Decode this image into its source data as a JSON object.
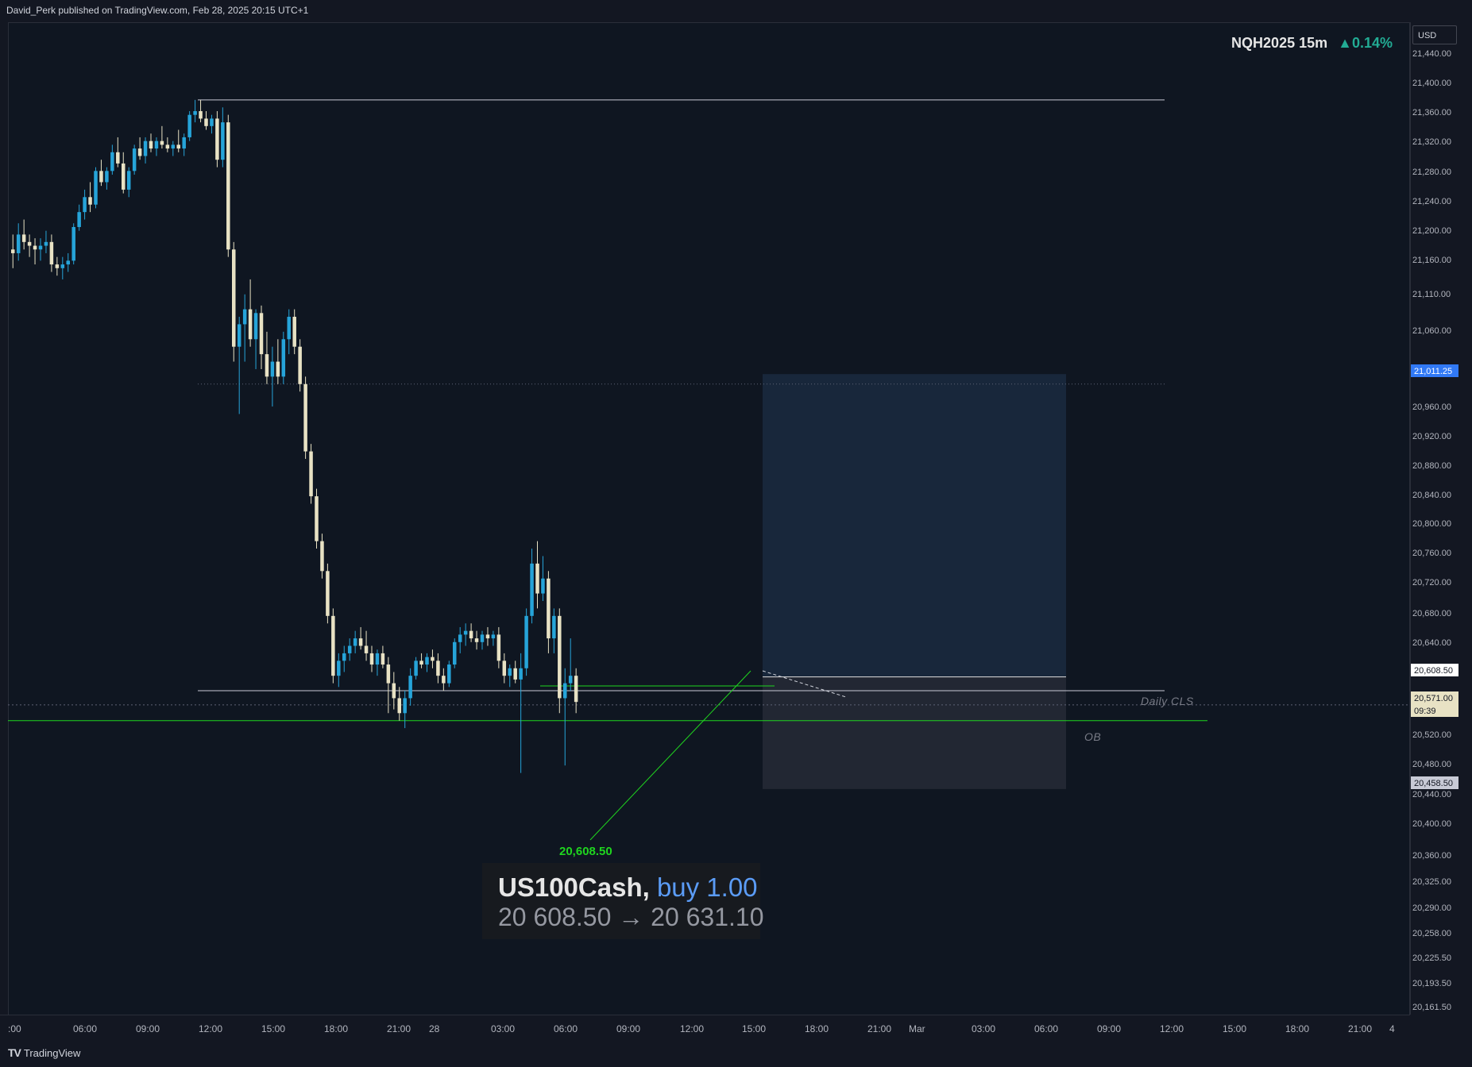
{
  "header": {
    "published": "David_Perk published on TradingView.com, Feb 28, 2025 20:15 UTC+1"
  },
  "legend": {
    "symbol": "NQH2025 15m",
    "change": "▲0.14%"
  },
  "price_axis": {
    "currency": "USD",
    "ticks": [
      "21,440.00",
      "21,400.00",
      "21,360.00",
      "21,320.00",
      "21,280.00",
      "21,240.00",
      "21,200.00",
      "21,160.00",
      "21,110.00",
      "21,060.00",
      "20,960.00",
      "20,920.00",
      "20,880.00",
      "20,840.00",
      "20,800.00",
      "20,760.00",
      "20,720.00",
      "20,680.00",
      "20,640.00",
      "20,520.00",
      "20,480.00",
      "20,440.00",
      "20,400.00",
      "20,360.00",
      "20,325.00",
      "20,290.00",
      "20,258.00",
      "20,225.50",
      "20,193.50",
      "20,161.50"
    ],
    "badges": {
      "target": "21,011.25",
      "entry": "20,608.50",
      "current": "20,571.00",
      "countdown": "09:39",
      "stop": "20,458.50"
    }
  },
  "time_axis": {
    "ticks": [
      ":00",
      "06:00",
      "09:00",
      "12:00",
      "15:00",
      "18:00",
      "21:00",
      "28",
      "03:00",
      "06:00",
      "09:00",
      "12:00",
      "15:00",
      "18:00",
      "21:00",
      "Mar",
      "03:00",
      "06:00",
      "09:00",
      "12:00",
      "15:00",
      "18:00",
      "21:00",
      "4"
    ]
  },
  "annotations": {
    "daily_cls": "Daily CLS",
    "ob": "OB",
    "entry_price": "20,608.50"
  },
  "trade": {
    "symbol": "US100Cash,",
    "side": "buy 1.00",
    "prices": "20 608.50 → 20 631.10"
  },
  "footer": {
    "brand": "TradingView"
  },
  "colors": {
    "up": "#26a4d9",
    "down": "#e8e2c4",
    "background": "#0f1621",
    "green": "#1fd51f",
    "target_zone": "#1a2a40",
    "stop_zone": "#2a2e39"
  },
  "chart_data": {
    "type": "candlestick",
    "symbol": "NQH2025",
    "timeframe": "15m",
    "key_levels": {
      "high_line": 21380,
      "mid_dotted": 21000,
      "daily_cls": 20590,
      "ob_line": 20550,
      "current_price_line": 20571
    },
    "position": {
      "side": "long",
      "entry": 20608.5,
      "target": 21011.25,
      "stop": 20458.5
    },
    "candles": [
      [
        21180,
        21200,
        21155,
        21175
      ],
      [
        21175,
        21215,
        21165,
        21200
      ],
      [
        21200,
        21220,
        21180,
        21190
      ],
      [
        21190,
        21200,
        21170,
        21185
      ],
      [
        21185,
        21195,
        21160,
        21180
      ],
      [
        21180,
        21195,
        21165,
        21185
      ],
      [
        21185,
        21205,
        21175,
        21190
      ],
      [
        21190,
        21200,
        21150,
        21160
      ],
      [
        21160,
        21170,
        21145,
        21155
      ],
      [
        21155,
        21170,
        21140,
        21160
      ],
      [
        21160,
        21175,
        21150,
        21165
      ],
      [
        21165,
        21215,
        21160,
        21210
      ],
      [
        21210,
        21240,
        21205,
        21230
      ],
      [
        21230,
        21260,
        21220,
        21250
      ],
      [
        21250,
        21270,
        21230,
        21240
      ],
      [
        21240,
        21290,
        21235,
        21285
      ],
      [
        21285,
        21300,
        21265,
        21270
      ],
      [
        21270,
        21290,
        21260,
        21285
      ],
      [
        21285,
        21320,
        21280,
        21310
      ],
      [
        21310,
        21330,
        21290,
        21295
      ],
      [
        21295,
        21310,
        21255,
        21260
      ],
      [
        21260,
        21290,
        21250,
        21285
      ],
      [
        21285,
        21320,
        21280,
        21315
      ],
      [
        21315,
        21330,
        21300,
        21305
      ],
      [
        21305,
        21330,
        21295,
        21325
      ],
      [
        21325,
        21335,
        21310,
        21315
      ],
      [
        21315,
        21330,
        21305,
        21325
      ],
      [
        21325,
        21345,
        21315,
        21320
      ],
      [
        21320,
        21330,
        21310,
        21315
      ],
      [
        21315,
        21325,
        21305,
        21320
      ],
      [
        21320,
        21340,
        21310,
        21315
      ],
      [
        21315,
        21335,
        21305,
        21330
      ],
      [
        21330,
        21365,
        21325,
        21360
      ],
      [
        21360,
        21380,
        21350,
        21365
      ],
      [
        21365,
        21380,
        21350,
        21355
      ],
      [
        21355,
        21365,
        21340,
        21345
      ],
      [
        21345,
        21360,
        21335,
        21355
      ],
      [
        21355,
        21365,
        21290,
        21300
      ],
      [
        21300,
        21370,
        21290,
        21350
      ],
      [
        21350,
        21360,
        21170,
        21180
      ],
      [
        21180,
        21190,
        21030,
        21050
      ],
      [
        21050,
        21090,
        20960,
        21080
      ],
      [
        21080,
        21120,
        21030,
        21100
      ],
      [
        21100,
        21140,
        21050,
        21060
      ],
      [
        21060,
        21100,
        21020,
        21095
      ],
      [
        21095,
        21105,
        21020,
        21040
      ],
      [
        21040,
        21070,
        21000,
        21010
      ],
      [
        21010,
        21050,
        20970,
        21030
      ],
      [
        21030,
        21060,
        21000,
        21010
      ],
      [
        21010,
        21070,
        21000,
        21060
      ],
      [
        21060,
        21100,
        21040,
        21090
      ],
      [
        21090,
        21100,
        21040,
        21050
      ],
      [
        21050,
        21060,
        20990,
        21000
      ],
      [
        21000,
        21010,
        20900,
        20910
      ],
      [
        20910,
        20920,
        20840,
        20850
      ],
      [
        20850,
        20860,
        20780,
        20790
      ],
      [
        20790,
        20800,
        20740,
        20750
      ],
      [
        20750,
        20760,
        20680,
        20690
      ],
      [
        20690,
        20700,
        20600,
        20610
      ],
      [
        20610,
        20640,
        20595,
        20630
      ],
      [
        20630,
        20650,
        20615,
        20640
      ],
      [
        20640,
        20660,
        20630,
        20650
      ],
      [
        20650,
        20670,
        20640,
        20660
      ],
      [
        20660,
        20675,
        20645,
        20650
      ],
      [
        20650,
        20670,
        20630,
        20640
      ],
      [
        20640,
        20650,
        20615,
        20625
      ],
      [
        20625,
        20645,
        20610,
        20640
      ],
      [
        20640,
        20650,
        20620,
        20625
      ],
      [
        20625,
        20635,
        20560,
        20600
      ],
      [
        20600,
        20615,
        20565,
        20580
      ],
      [
        20580,
        20595,
        20550,
        20560
      ],
      [
        20560,
        20590,
        20540,
        20580
      ],
      [
        20580,
        20620,
        20570,
        20610
      ],
      [
        20610,
        20635,
        20605,
        20630
      ],
      [
        20630,
        20640,
        20620,
        20625
      ],
      [
        20625,
        20640,
        20615,
        20635
      ],
      [
        20635,
        20645,
        20620,
        20630
      ],
      [
        20630,
        20640,
        20600,
        20610
      ],
      [
        20610,
        20620,
        20590,
        20600
      ],
      [
        20600,
        20630,
        20595,
        20625
      ],
      [
        20625,
        20660,
        20620,
        20655
      ],
      [
        20655,
        20675,
        20640,
        20665
      ],
      [
        20665,
        20680,
        20650,
        20670
      ],
      [
        20670,
        20680,
        20655,
        20660
      ],
      [
        20660,
        20670,
        20645,
        20655
      ],
      [
        20655,
        20670,
        20645,
        20665
      ],
      [
        20665,
        20675,
        20650,
        20660
      ],
      [
        20660,
        20670,
        20650,
        20665
      ],
      [
        20665,
        20675,
        20620,
        20630
      ],
      [
        20630,
        20640,
        20600,
        20610
      ],
      [
        20610,
        20625,
        20595,
        20620
      ],
      [
        20620,
        20630,
        20600,
        20605
      ],
      [
        20605,
        20640,
        20480,
        20620
      ],
      [
        20620,
        20700,
        20610,
        20690
      ],
      [
        20690,
        20780,
        20680,
        20760
      ],
      [
        20760,
        20790,
        20700,
        20720
      ],
      [
        20720,
        20770,
        20710,
        20740
      ],
      [
        20740,
        20750,
        20640,
        20660
      ],
      [
        20660,
        20700,
        20640,
        20690
      ],
      [
        20690,
        20700,
        20560,
        20580
      ],
      [
        20580,
        20620,
        20490,
        20600
      ],
      [
        20600,
        20660,
        20590,
        20610
      ],
      [
        20610,
        20620,
        20560,
        20575
      ]
    ]
  }
}
